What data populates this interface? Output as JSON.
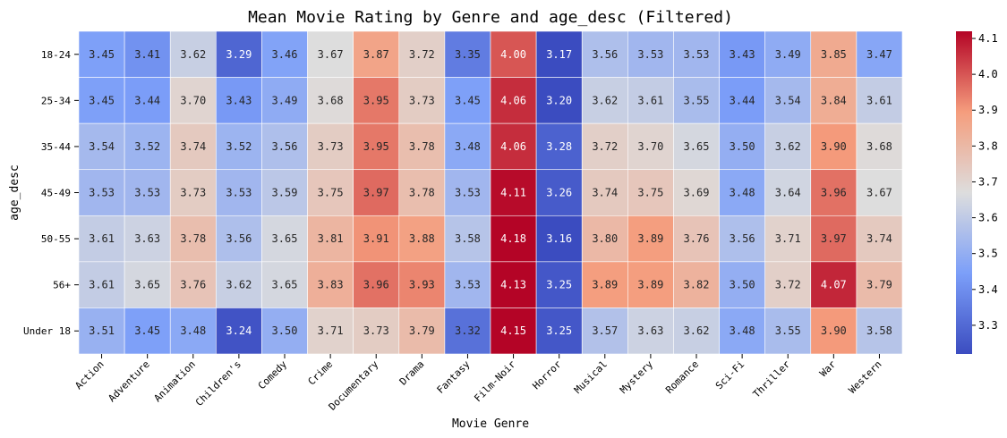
{
  "chart_data": {
    "type": "heatmap",
    "title": "Mean Movie Rating by Genre and age_desc (Filtered)",
    "xlabel": "Movie Genre",
    "ylabel": "age_desc",
    "x": [
      "Action",
      "Adventure",
      "Animation",
      "Children's",
      "Comedy",
      "Crime",
      "Documentary",
      "Drama",
      "Fantasy",
      "Film-Noir",
      "Horror",
      "Musical",
      "Mystery",
      "Romance",
      "Sci-Fi",
      "Thriller",
      "War",
      "Western"
    ],
    "y": [
      "18-24",
      "25-34",
      "35-44",
      "45-49",
      "50-55",
      "56+",
      "Under 18"
    ],
    "values": [
      [
        3.45,
        3.41,
        3.62,
        3.29,
        3.46,
        3.67,
        3.87,
        3.72,
        3.35,
        4.0,
        3.17,
        3.56,
        3.53,
        3.53,
        3.43,
        3.49,
        3.85,
        3.47
      ],
      [
        3.45,
        3.44,
        3.7,
        3.43,
        3.49,
        3.68,
        3.95,
        3.73,
        3.45,
        4.06,
        3.2,
        3.62,
        3.61,
        3.55,
        3.44,
        3.54,
        3.84,
        3.61
      ],
      [
        3.54,
        3.52,
        3.74,
        3.52,
        3.56,
        3.73,
        3.95,
        3.78,
        3.48,
        4.06,
        3.28,
        3.72,
        3.7,
        3.65,
        3.5,
        3.62,
        3.9,
        3.68
      ],
      [
        3.53,
        3.53,
        3.73,
        3.53,
        3.59,
        3.75,
        3.97,
        3.78,
        3.53,
        4.11,
        3.26,
        3.74,
        3.75,
        3.69,
        3.48,
        3.64,
        3.96,
        3.67
      ],
      [
        3.61,
        3.63,
        3.78,
        3.56,
        3.65,
        3.81,
        3.91,
        3.88,
        3.58,
        4.18,
        3.16,
        3.8,
        3.89,
        3.76,
        3.56,
        3.71,
        3.97,
        3.74
      ],
      [
        3.61,
        3.65,
        3.76,
        3.62,
        3.65,
        3.83,
        3.96,
        3.93,
        3.53,
        4.13,
        3.25,
        3.89,
        3.89,
        3.82,
        3.5,
        3.72,
        4.07,
        3.79
      ],
      [
        3.51,
        3.45,
        3.48,
        3.24,
        3.5,
        3.71,
        3.73,
        3.79,
        3.32,
        4.15,
        3.25,
        3.57,
        3.63,
        3.62,
        3.48,
        3.55,
        3.9,
        3.58
      ]
    ],
    "value_format": "2 decimals",
    "colormap": "coolwarm",
    "vmin": 3.22,
    "vmax": 4.12,
    "colorbar_ticks": [
      3.3,
      3.4,
      3.5,
      3.6,
      3.7,
      3.8,
      3.9,
      4.0,
      4.1
    ],
    "colorbar_tick_labels": [
      "3.3",
      "3.4",
      "3.5",
      "3.6",
      "3.7",
      "3.8",
      "3.9",
      "4.0",
      "4.1"
    ]
  }
}
